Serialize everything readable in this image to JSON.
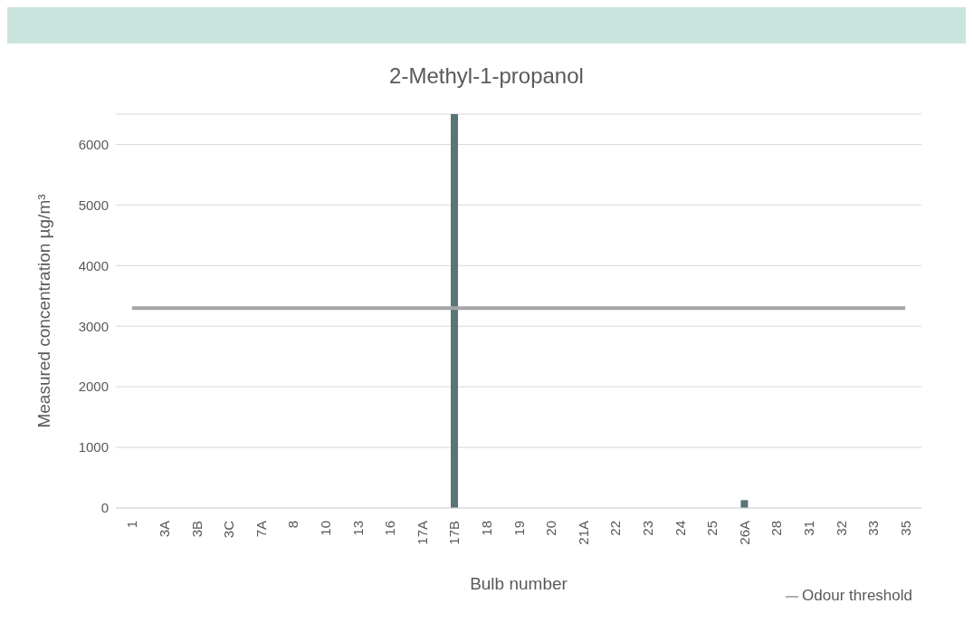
{
  "chart_data": {
    "type": "bar",
    "title": "2-Methyl-1-propanol",
    "xlabel": "Bulb number",
    "ylabel": "Measured concentration µg/m³",
    "categories": [
      "1",
      "3A",
      "3B",
      "3C",
      "7A",
      "8",
      "10",
      "13",
      "16",
      "17A",
      "17B",
      "18",
      "19",
      "20",
      "21A",
      "22",
      "23",
      "24",
      "25",
      "26A",
      "28",
      "31",
      "32",
      "33",
      "35"
    ],
    "series": [
      {
        "color": "#587577",
        "values": [
          0,
          0,
          0,
          0,
          0,
          0,
          0,
          0,
          0,
          0,
          6500,
          0,
          0,
          0,
          0,
          0,
          0,
          0,
          0,
          130,
          0,
          0,
          0,
          0,
          0
        ]
      },
      {
        "type": "line",
        "name": "Odour threshold",
        "color": "#a5a5a5",
        "values": [
          3300,
          3300,
          3300,
          3300,
          3300,
          3300,
          3300,
          3300,
          3300,
          3300,
          3300,
          3300,
          3300,
          3300,
          3300,
          3300,
          3300,
          3300,
          3300,
          3300,
          3300,
          3300,
          3300,
          3300,
          3300
        ]
      }
    ],
    "ylim": [
      0,
      6500
    ],
    "yticks": [
      0,
      1000,
      2000,
      3000,
      4000,
      5000,
      6000
    ],
    "grid": "y",
    "legend": "bottom right",
    "marker": "none",
    "line_style": "solid"
  }
}
